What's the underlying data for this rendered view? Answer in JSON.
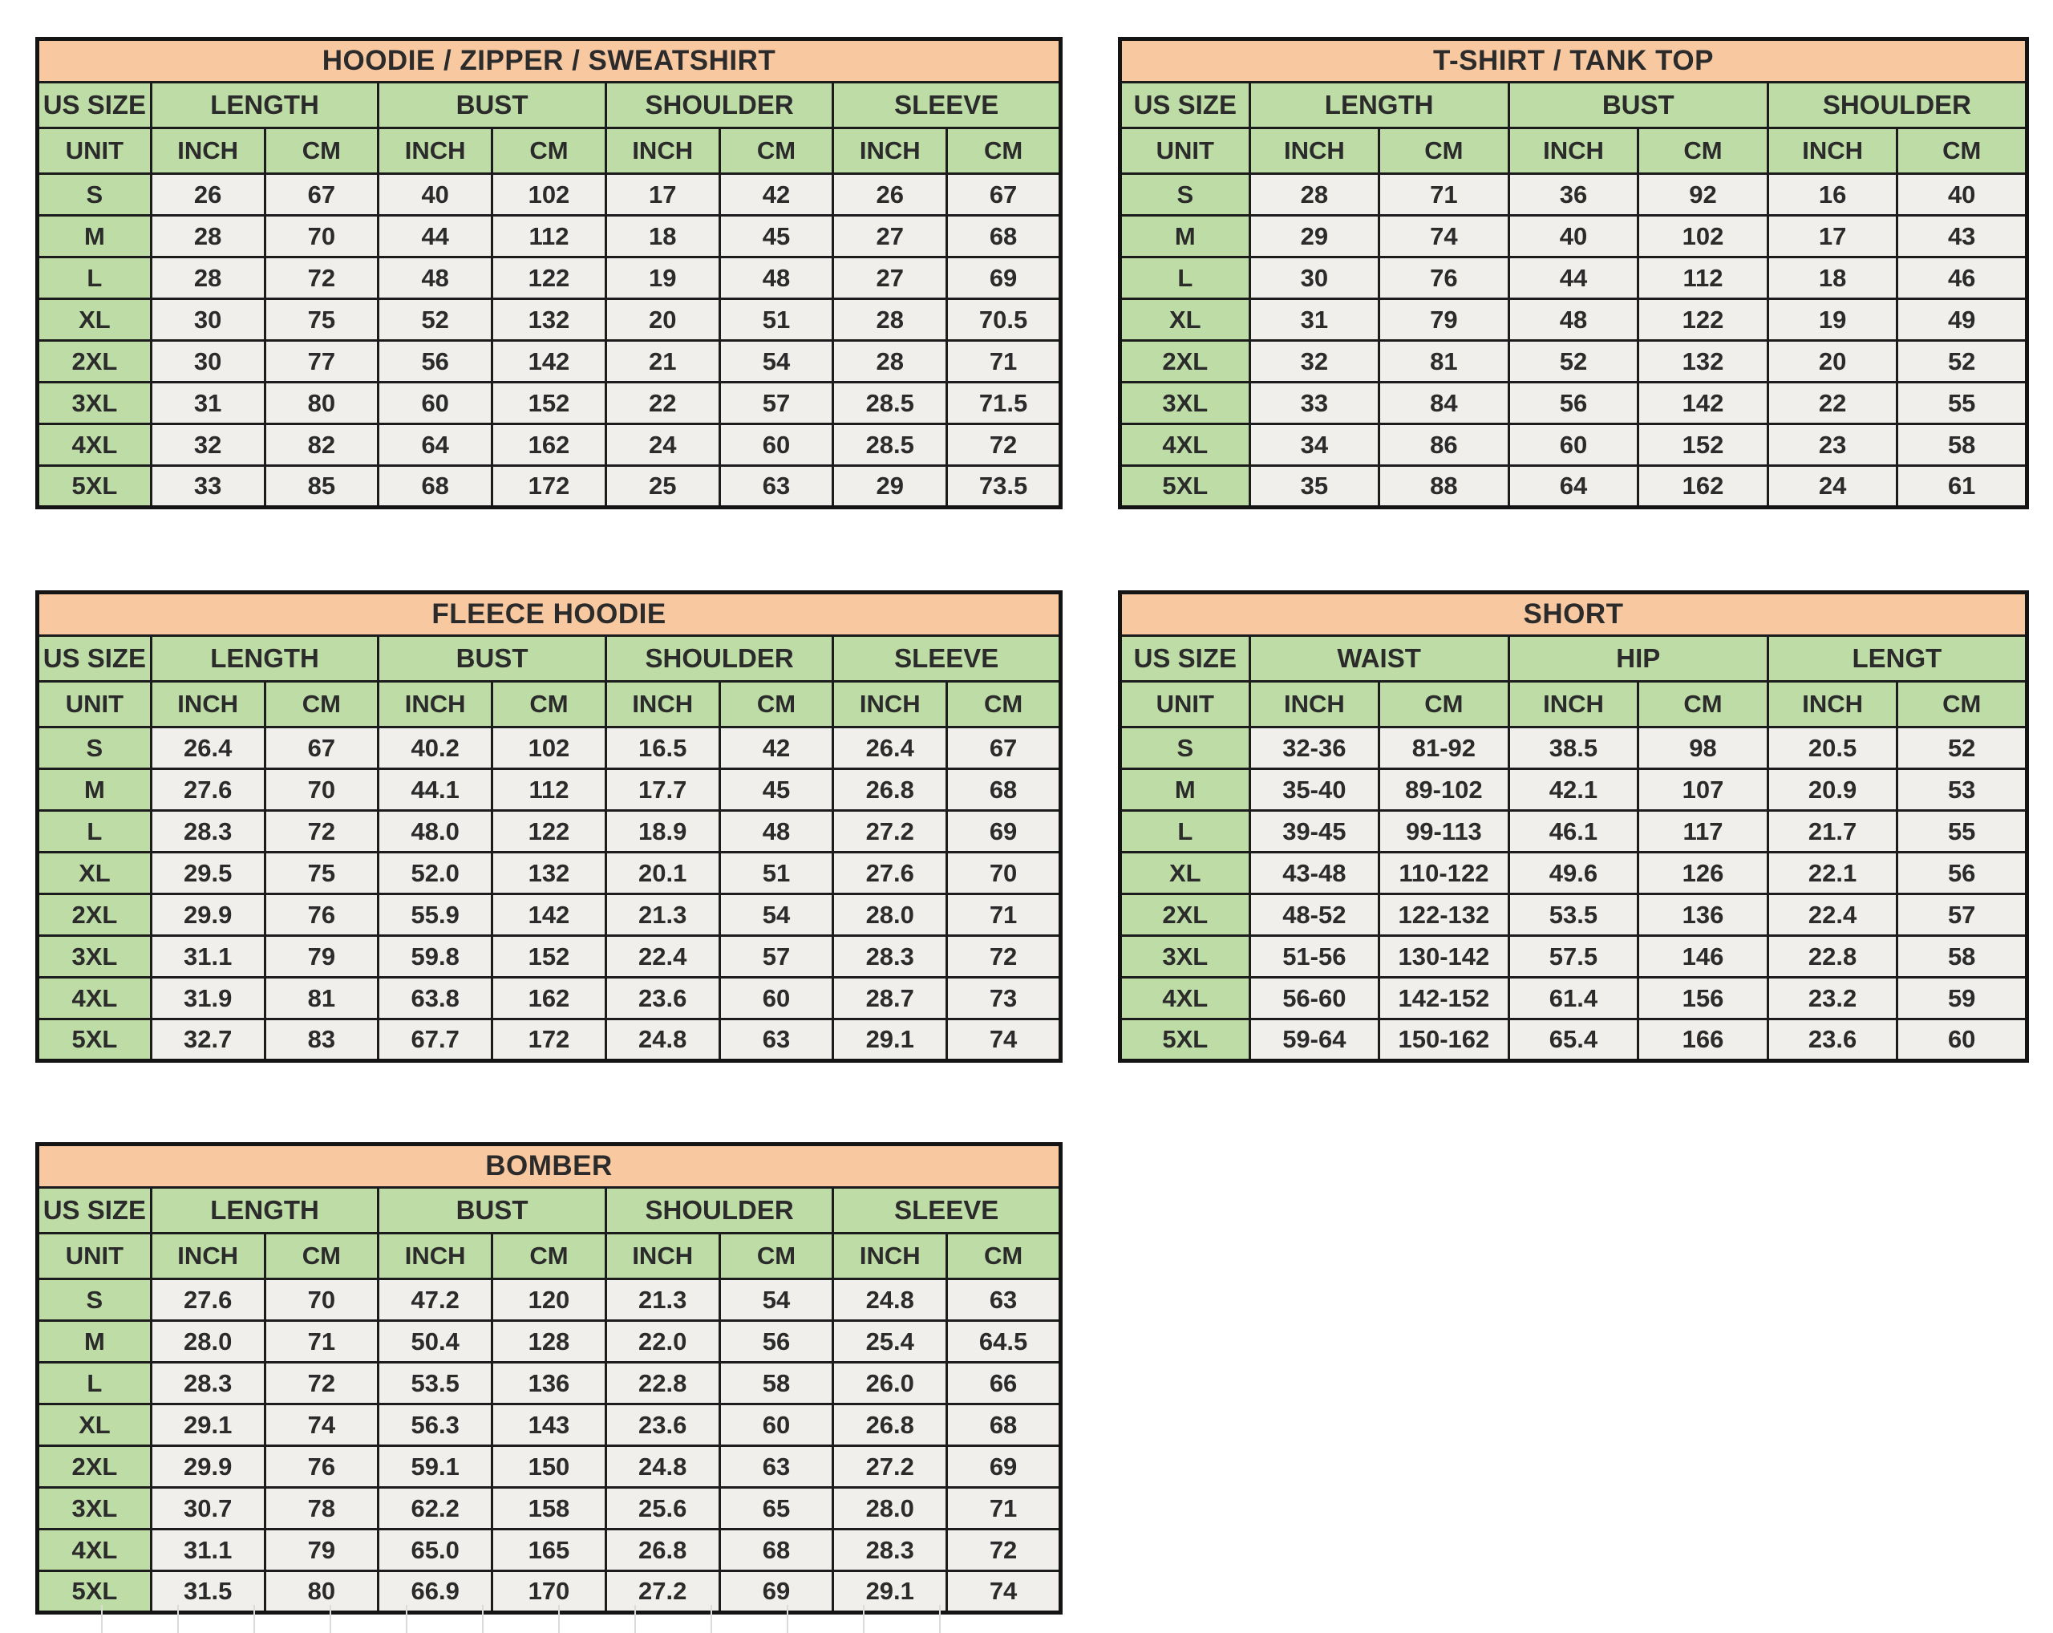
{
  "page_title": "Apparel Size Charts",
  "colors": {
    "title_bg": "#f8c8a0",
    "header_bg": "#bedda6",
    "cell_bg": "#f0efec",
    "border": "#1c1c1c",
    "text": "#2b2b2b",
    "background": "#ffffff"
  },
  "chart_data": [
    {
      "type": "table",
      "title": "HOODIE / ZIPPER / SWEATSHIRT",
      "corner_label": "US SIZE",
      "unit_label": "UNIT",
      "column_groups": [
        {
          "label": "LENGTH",
          "units": [
            "INCH",
            "CM"
          ]
        },
        {
          "label": "BUST",
          "units": [
            "INCH",
            "CM"
          ]
        },
        {
          "label": "SHOULDER",
          "units": [
            "INCH",
            "CM"
          ]
        },
        {
          "label": "SLEEVE",
          "units": [
            "INCH",
            "CM"
          ]
        }
      ],
      "rows": [
        {
          "size": "S",
          "values": [
            "26",
            "67",
            "40",
            "102",
            "17",
            "42",
            "26",
            "67"
          ]
        },
        {
          "size": "M",
          "values": [
            "28",
            "70",
            "44",
            "112",
            "18",
            "45",
            "27",
            "68"
          ]
        },
        {
          "size": "L",
          "values": [
            "28",
            "72",
            "48",
            "122",
            "19",
            "48",
            "27",
            "69"
          ]
        },
        {
          "size": "XL",
          "values": [
            "30",
            "75",
            "52",
            "132",
            "20",
            "51",
            "28",
            "70.5"
          ]
        },
        {
          "size": "2XL",
          "values": [
            "30",
            "77",
            "56",
            "142",
            "21",
            "54",
            "28",
            "71"
          ]
        },
        {
          "size": "3XL",
          "values": [
            "31",
            "80",
            "60",
            "152",
            "22",
            "57",
            "28.5",
            "71.5"
          ]
        },
        {
          "size": "4XL",
          "values": [
            "32",
            "82",
            "64",
            "162",
            "24",
            "60",
            "28.5",
            "72"
          ]
        },
        {
          "size": "5XL",
          "values": [
            "33",
            "85",
            "68",
            "172",
            "25",
            "63",
            "29",
            "73.5"
          ]
        }
      ]
    },
    {
      "type": "table",
      "title": "T-SHIRT / TANK TOP",
      "corner_label": "US SIZE",
      "unit_label": "UNIT",
      "column_groups": [
        {
          "label": "LENGTH",
          "units": [
            "INCH",
            "CM"
          ]
        },
        {
          "label": "BUST",
          "units": [
            "INCH",
            "CM"
          ]
        },
        {
          "label": "SHOULDER",
          "units": [
            "INCH",
            "CM"
          ]
        }
      ],
      "rows": [
        {
          "size": "S",
          "values": [
            "28",
            "71",
            "36",
            "92",
            "16",
            "40"
          ]
        },
        {
          "size": "M",
          "values": [
            "29",
            "74",
            "40",
            "102",
            "17",
            "43"
          ]
        },
        {
          "size": "L",
          "values": [
            "30",
            "76",
            "44",
            "112",
            "18",
            "46"
          ]
        },
        {
          "size": "XL",
          "values": [
            "31",
            "79",
            "48",
            "122",
            "19",
            "49"
          ]
        },
        {
          "size": "2XL",
          "values": [
            "32",
            "81",
            "52",
            "132",
            "20",
            "52"
          ]
        },
        {
          "size": "3XL",
          "values": [
            "33",
            "84",
            "56",
            "142",
            "22",
            "55"
          ]
        },
        {
          "size": "4XL",
          "values": [
            "34",
            "86",
            "60",
            "152",
            "23",
            "58"
          ]
        },
        {
          "size": "5XL",
          "values": [
            "35",
            "88",
            "64",
            "162",
            "24",
            "61"
          ]
        }
      ]
    },
    {
      "type": "table",
      "title": "FLEECE HOODIE",
      "corner_label": "US SIZE",
      "unit_label": "UNIT",
      "column_groups": [
        {
          "label": "LENGTH",
          "units": [
            "INCH",
            "CM"
          ]
        },
        {
          "label": "BUST",
          "units": [
            "INCH",
            "CM"
          ]
        },
        {
          "label": "SHOULDER",
          "units": [
            "INCH",
            "CM"
          ]
        },
        {
          "label": "SLEEVE",
          "units": [
            "INCH",
            "CM"
          ]
        }
      ],
      "rows": [
        {
          "size": "S",
          "values": [
            "26.4",
            "67",
            "40.2",
            "102",
            "16.5",
            "42",
            "26.4",
            "67"
          ]
        },
        {
          "size": "M",
          "values": [
            "27.6",
            "70",
            "44.1",
            "112",
            "17.7",
            "45",
            "26.8",
            "68"
          ]
        },
        {
          "size": "L",
          "values": [
            "28.3",
            "72",
            "48.0",
            "122",
            "18.9",
            "48",
            "27.2",
            "69"
          ]
        },
        {
          "size": "XL",
          "values": [
            "29.5",
            "75",
            "52.0",
            "132",
            "20.1",
            "51",
            "27.6",
            "70"
          ]
        },
        {
          "size": "2XL",
          "values": [
            "29.9",
            "76",
            "55.9",
            "142",
            "21.3",
            "54",
            "28.0",
            "71"
          ]
        },
        {
          "size": "3XL",
          "values": [
            "31.1",
            "79",
            "59.8",
            "152",
            "22.4",
            "57",
            "28.3",
            "72"
          ]
        },
        {
          "size": "4XL",
          "values": [
            "31.9",
            "81",
            "63.8",
            "162",
            "23.6",
            "60",
            "28.7",
            "73"
          ]
        },
        {
          "size": "5XL",
          "values": [
            "32.7",
            "83",
            "67.7",
            "172",
            "24.8",
            "63",
            "29.1",
            "74"
          ]
        }
      ]
    },
    {
      "type": "table",
      "title": "SHORT",
      "corner_label": "US SIZE",
      "unit_label": "UNIT",
      "column_groups": [
        {
          "label": "WAIST",
          "units": [
            "INCH",
            "CM"
          ]
        },
        {
          "label": "HIP",
          "units": [
            "INCH",
            "CM"
          ]
        },
        {
          "label": "LENGT",
          "units": [
            "INCH",
            "CM"
          ]
        }
      ],
      "rows": [
        {
          "size": "S",
          "values": [
            "32-36",
            "81-92",
            "38.5",
            "98",
            "20.5",
            "52"
          ]
        },
        {
          "size": "M",
          "values": [
            "35-40",
            "89-102",
            "42.1",
            "107",
            "20.9",
            "53"
          ]
        },
        {
          "size": "L",
          "values": [
            "39-45",
            "99-113",
            "46.1",
            "117",
            "21.7",
            "55"
          ]
        },
        {
          "size": "XL",
          "values": [
            "43-48",
            "110-122",
            "49.6",
            "126",
            "22.1",
            "56"
          ]
        },
        {
          "size": "2XL",
          "values": [
            "48-52",
            "122-132",
            "53.5",
            "136",
            "22.4",
            "57"
          ]
        },
        {
          "size": "3XL",
          "values": [
            "51-56",
            "130-142",
            "57.5",
            "146",
            "22.8",
            "58"
          ]
        },
        {
          "size": "4XL",
          "values": [
            "56-60",
            "142-152",
            "61.4",
            "156",
            "23.2",
            "59"
          ]
        },
        {
          "size": "5XL",
          "values": [
            "59-64",
            "150-162",
            "65.4",
            "166",
            "23.6",
            "60"
          ]
        }
      ]
    },
    {
      "type": "table",
      "title": "BOMBER",
      "corner_label": "US SIZE",
      "unit_label": "UNIT",
      "column_groups": [
        {
          "label": "LENGTH",
          "units": [
            "INCH",
            "CM"
          ]
        },
        {
          "label": "BUST",
          "units": [
            "INCH",
            "CM"
          ]
        },
        {
          "label": "SHOULDER",
          "units": [
            "INCH",
            "CM"
          ]
        },
        {
          "label": "SLEEVE",
          "units": [
            "INCH",
            "CM"
          ]
        }
      ],
      "rows": [
        {
          "size": "S",
          "values": [
            "27.6",
            "70",
            "47.2",
            "120",
            "21.3",
            "54",
            "24.8",
            "63"
          ]
        },
        {
          "size": "M",
          "values": [
            "28.0",
            "71",
            "50.4",
            "128",
            "22.0",
            "56",
            "25.4",
            "64.5"
          ]
        },
        {
          "size": "L",
          "values": [
            "28.3",
            "72",
            "53.5",
            "136",
            "22.8",
            "58",
            "26.0",
            "66"
          ]
        },
        {
          "size": "XL",
          "values": [
            "29.1",
            "74",
            "56.3",
            "143",
            "23.6",
            "60",
            "26.8",
            "68"
          ]
        },
        {
          "size": "2XL",
          "values": [
            "29.9",
            "76",
            "59.1",
            "150",
            "24.8",
            "63",
            "27.2",
            "69"
          ]
        },
        {
          "size": "3XL",
          "values": [
            "30.7",
            "78",
            "62.2",
            "158",
            "25.6",
            "65",
            "28.0",
            "71"
          ]
        },
        {
          "size": "4XL",
          "values": [
            "31.1",
            "79",
            "65.0",
            "165",
            "26.8",
            "68",
            "28.3",
            "72"
          ]
        },
        {
          "size": "5XL",
          "values": [
            "31.5",
            "80",
            "66.9",
            "170",
            "27.2",
            "69",
            "29.1",
            "74"
          ]
        }
      ]
    }
  ]
}
